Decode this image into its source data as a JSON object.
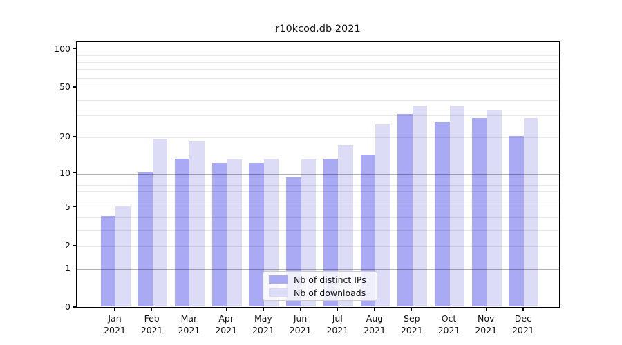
{
  "chart_data": {
    "type": "bar",
    "title": "r10kcod.db 2021",
    "categories": [
      "Jan",
      "Feb",
      "Mar",
      "Apr",
      "May",
      "Jun",
      "Jul",
      "Aug",
      "Sep",
      "Oct",
      "Nov",
      "Dec"
    ],
    "category_year": "2021",
    "series": [
      {
        "name": "Nb of distinct IPs",
        "color": "#a9a9f4",
        "values": [
          4,
          10,
          13,
          12,
          12,
          9,
          13,
          14,
          30,
          26,
          28,
          20
        ]
      },
      {
        "name": "Nb of downloads",
        "color": "#dcdcf7",
        "values": [
          5,
          19,
          18,
          13,
          13,
          13,
          17,
          25,
          35,
          35,
          32,
          28
        ]
      }
    ],
    "y_axis": {
      "scale": "log10(1+v)",
      "tick_values": [
        0,
        1,
        2,
        5,
        10,
        20,
        50,
        100
      ],
      "tick_labels": [
        "0",
        "1",
        "2",
        "5",
        "10",
        "20",
        "50",
        "100"
      ],
      "minor_gridline_values": [
        2,
        3,
        4,
        5,
        6,
        7,
        8,
        9,
        20,
        30,
        40,
        50,
        60,
        70,
        80,
        90
      ],
      "major_gridline_values": [
        1,
        10,
        100
      ],
      "ylim_top_value": 110
    },
    "legend": {
      "position": "lower-center"
    },
    "grid": "both"
  }
}
